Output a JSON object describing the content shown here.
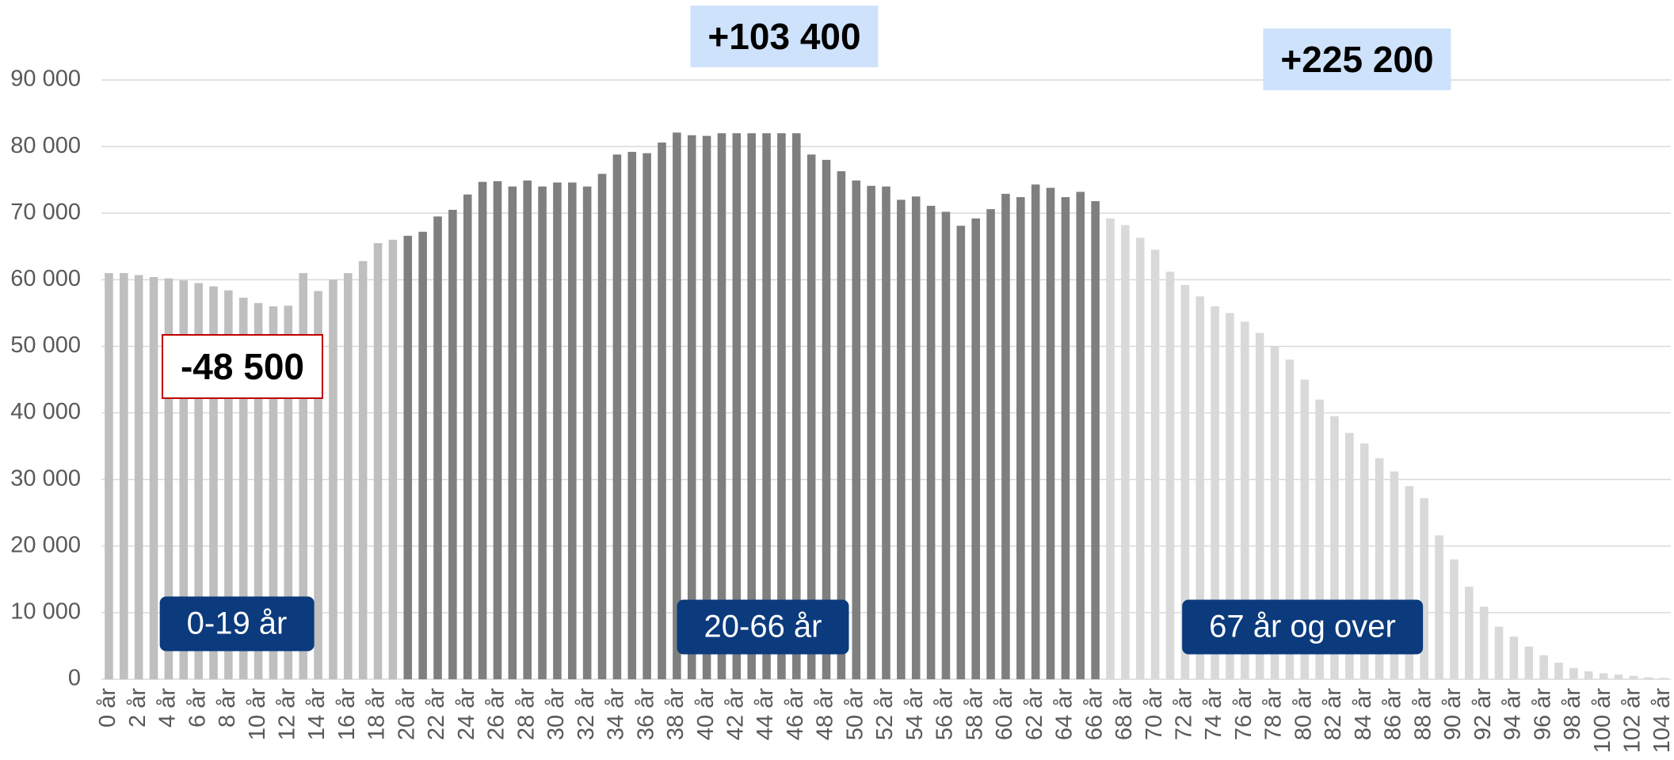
{
  "chart_data": {
    "type": "bar",
    "categories": [
      "0 år",
      null,
      "2 år",
      null,
      "4 år",
      null,
      "6 år",
      null,
      "8 år",
      null,
      "10 år",
      null,
      "12 år",
      null,
      "14 år",
      null,
      "16 år",
      null,
      "18 år",
      null,
      "20 år",
      null,
      "22 år",
      null,
      "24 år",
      null,
      "26 år",
      null,
      "28 år",
      null,
      "30 år",
      null,
      "32 år",
      null,
      "34 år",
      null,
      "36 år",
      null,
      "38 år",
      null,
      "40 år",
      null,
      "42 år",
      null,
      "44 år",
      null,
      "46 år",
      null,
      "48 år",
      null,
      "50 år",
      null,
      "52 år",
      null,
      "54 år",
      null,
      "56 år",
      null,
      "58 år",
      null,
      "60 år",
      null,
      "62 år",
      null,
      "64 år",
      null,
      "66 år",
      null,
      "68 år",
      null,
      "70 år",
      null,
      "72 år",
      null,
      "74 år",
      null,
      "76 år",
      null,
      "78 år",
      null,
      "80 år",
      null,
      "82 år",
      null,
      "84 år",
      null,
      "86 år",
      null,
      "88 år",
      null,
      "90 år",
      null,
      "92 år",
      null,
      "94 år",
      null,
      "96 år",
      null,
      "98 år",
      null,
      "100 år",
      null,
      "102 år",
      null,
      "104 år"
    ],
    "series": [
      {
        "name": "0-19 år",
        "change": "-48 500",
        "color": "#bfbfbf",
        "values": [
          61000,
          61000,
          60700,
          60400,
          60200,
          59900,
          59500,
          59000,
          58400,
          57300,
          56500,
          56000,
          56100,
          61000,
          58300,
          60000,
          61000,
          62800,
          65500,
          66000,
          null,
          null,
          null,
          null,
          null,
          null,
          null,
          null,
          null,
          null,
          null,
          null,
          null,
          null,
          null,
          null,
          null,
          null,
          null,
          null,
          null,
          null,
          null,
          null,
          null,
          null,
          null,
          null,
          null,
          null,
          null,
          null,
          null,
          null,
          null,
          null,
          null,
          null,
          null,
          null,
          null,
          null,
          null,
          null,
          null,
          null,
          null,
          null,
          null,
          null,
          null,
          null,
          null,
          null,
          null,
          null,
          null,
          null,
          null,
          null,
          null,
          null,
          null,
          null,
          null,
          null,
          null,
          null,
          null,
          null,
          null,
          null,
          null,
          null,
          null,
          null,
          null,
          null,
          null,
          null,
          null,
          null,
          null,
          null,
          null
        ]
      },
      {
        "name": "20-66 år",
        "change": "+103 400",
        "color": "#7f7f7f",
        "values": [
          null,
          null,
          null,
          null,
          null,
          null,
          null,
          null,
          null,
          null,
          null,
          null,
          null,
          null,
          null,
          null,
          null,
          null,
          null,
          null,
          66600,
          67200,
          69500,
          70500,
          72800,
          74700,
          74800,
          74000,
          74900,
          74000,
          74600,
          74600,
          74000,
          75900,
          78800,
          79200,
          79000,
          80600,
          82100,
          81700,
          81600,
          82000,
          82000,
          82000,
          82000,
          82000,
          82000,
          78800,
          78000,
          76300,
          74900,
          74100,
          74000,
          72000,
          72500,
          71100,
          70200,
          68100,
          69200,
          70600,
          72900,
          72400,
          74300,
          73800,
          72400,
          73200,
          71800,
          null,
          null,
          null,
          null,
          null,
          null,
          null,
          null,
          null,
          null,
          null,
          null,
          null,
          null,
          null,
          null,
          null,
          null,
          null,
          null,
          null,
          null,
          null,
          null,
          null,
          null,
          null,
          null,
          null,
          null,
          null,
          null,
          null,
          null,
          null,
          null,
          null,
          null
        ]
      },
      {
        "name": "67 år og over",
        "change": "+225 200",
        "color": "#d9d9d9",
        "values": [
          null,
          null,
          null,
          null,
          null,
          null,
          null,
          null,
          null,
          null,
          null,
          null,
          null,
          null,
          null,
          null,
          null,
          null,
          null,
          null,
          null,
          null,
          null,
          null,
          null,
          null,
          null,
          null,
          null,
          null,
          null,
          null,
          null,
          null,
          null,
          null,
          null,
          null,
          null,
          null,
          null,
          null,
          null,
          null,
          null,
          null,
          null,
          null,
          null,
          null,
          null,
          null,
          null,
          null,
          null,
          null,
          null,
          null,
          null,
          null,
          null,
          null,
          null,
          null,
          null,
          null,
          null,
          69200,
          68200,
          66300,
          64500,
          61200,
          59200,
          57500,
          56000,
          55000,
          53700,
          52000,
          50000,
          48000,
          45000,
          42000,
          39500,
          37000,
          35400,
          33200,
          31200,
          29000,
          27200,
          21600,
          18000,
          13900,
          10900,
          7900,
          6400,
          4900,
          3600,
          2500,
          1700,
          1200,
          900,
          700,
          500,
          300,
          200
        ]
      }
    ],
    "ylim": [
      0,
      90000
    ],
    "yticks": [
      0,
      {
        "value": 10000,
        "label": "10 000"
      },
      {
        "value": 20000,
        "label": "20 000"
      },
      {
        "value": 30000,
        "label": "30 000"
      },
      {
        "value": 40000,
        "label": "40 000"
      },
      {
        "value": 50000,
        "label": "50 000"
      },
      {
        "value": 60000,
        "label": "60 000"
      },
      {
        "value": 70000,
        "label": "70 000"
      },
      {
        "value": 80000,
        "label": "80 000"
      },
      {
        "value": 90000,
        "label": "90 000"
      }
    ],
    "grid": true
  }
}
